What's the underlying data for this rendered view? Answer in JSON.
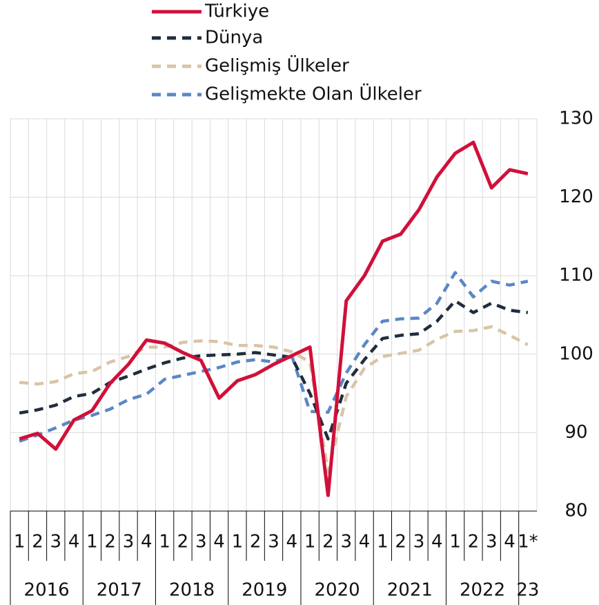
{
  "chart_data": {
    "type": "line",
    "categories": [
      "1",
      "2",
      "3",
      "4",
      "1",
      "2",
      "3",
      "4",
      "1",
      "2",
      "3",
      "4",
      "1",
      "2",
      "3",
      "4",
      "1",
      "2",
      "3",
      "4",
      "1",
      "2",
      "3",
      "4",
      "1",
      "2",
      "3",
      "4",
      "1*"
    ],
    "years": [
      "2016",
      "2017",
      "2018",
      "2019",
      "2020",
      "2021",
      "2022",
      "23"
    ],
    "ylim": [
      80,
      130
    ],
    "yticks": [
      80,
      90,
      100,
      110,
      120,
      130
    ],
    "grid": true,
    "series": [
      {
        "name": "Türkiye",
        "color": "#d0103a",
        "style": "solid",
        "values": [
          89.2,
          89.9,
          87.9,
          91.6,
          92.8,
          96.3,
          98.7,
          101.8,
          101.4,
          100.2,
          99.2,
          94.4,
          96.6,
          97.4,
          98.7,
          99.8,
          100.9,
          82.0,
          106.8,
          110.0,
          114.4,
          115.3,
          118.4,
          122.6,
          125.6,
          127.0,
          121.2,
          123.5,
          123.0
        ]
      },
      {
        "name": "Dünya",
        "color": "#1f2d3d",
        "style": "dashed",
        "values": [
          92.5,
          92.9,
          93.5,
          94.6,
          95.0,
          96.4,
          97.2,
          98.1,
          98.9,
          99.5,
          99.8,
          99.9,
          100.0,
          100.2,
          99.9,
          99.6,
          95.0,
          89.2,
          96.3,
          99.3,
          102.0,
          102.4,
          102.6,
          104.2,
          106.8,
          105.3,
          106.5,
          105.6,
          105.3
        ]
      },
      {
        "name": "Gelişmiş Ülkeler",
        "color": "#d9c4a6",
        "style": "dashed",
        "values": [
          96.4,
          96.2,
          96.5,
          97.5,
          97.8,
          99.0,
          99.7,
          100.9,
          100.9,
          101.5,
          101.7,
          101.6,
          101.1,
          101.1,
          100.9,
          100.3,
          99.0,
          85.0,
          94.6,
          98.2,
          99.7,
          100.1,
          100.5,
          101.9,
          102.9,
          103.0,
          103.5,
          102.4,
          101.2
        ]
      },
      {
        "name": "Gelişmekte Olan Ülkeler",
        "color": "#5b87c5",
        "style": "dashed",
        "values": [
          88.9,
          89.7,
          90.6,
          91.6,
          92.2,
          93.0,
          94.2,
          94.9,
          96.8,
          97.3,
          97.8,
          98.3,
          99.0,
          99.3,
          99.0,
          99.8,
          92.7,
          92.6,
          97.6,
          101.2,
          104.2,
          104.5,
          104.6,
          106.5,
          110.4,
          107.3,
          109.3,
          108.8,
          109.3
        ]
      }
    ]
  }
}
